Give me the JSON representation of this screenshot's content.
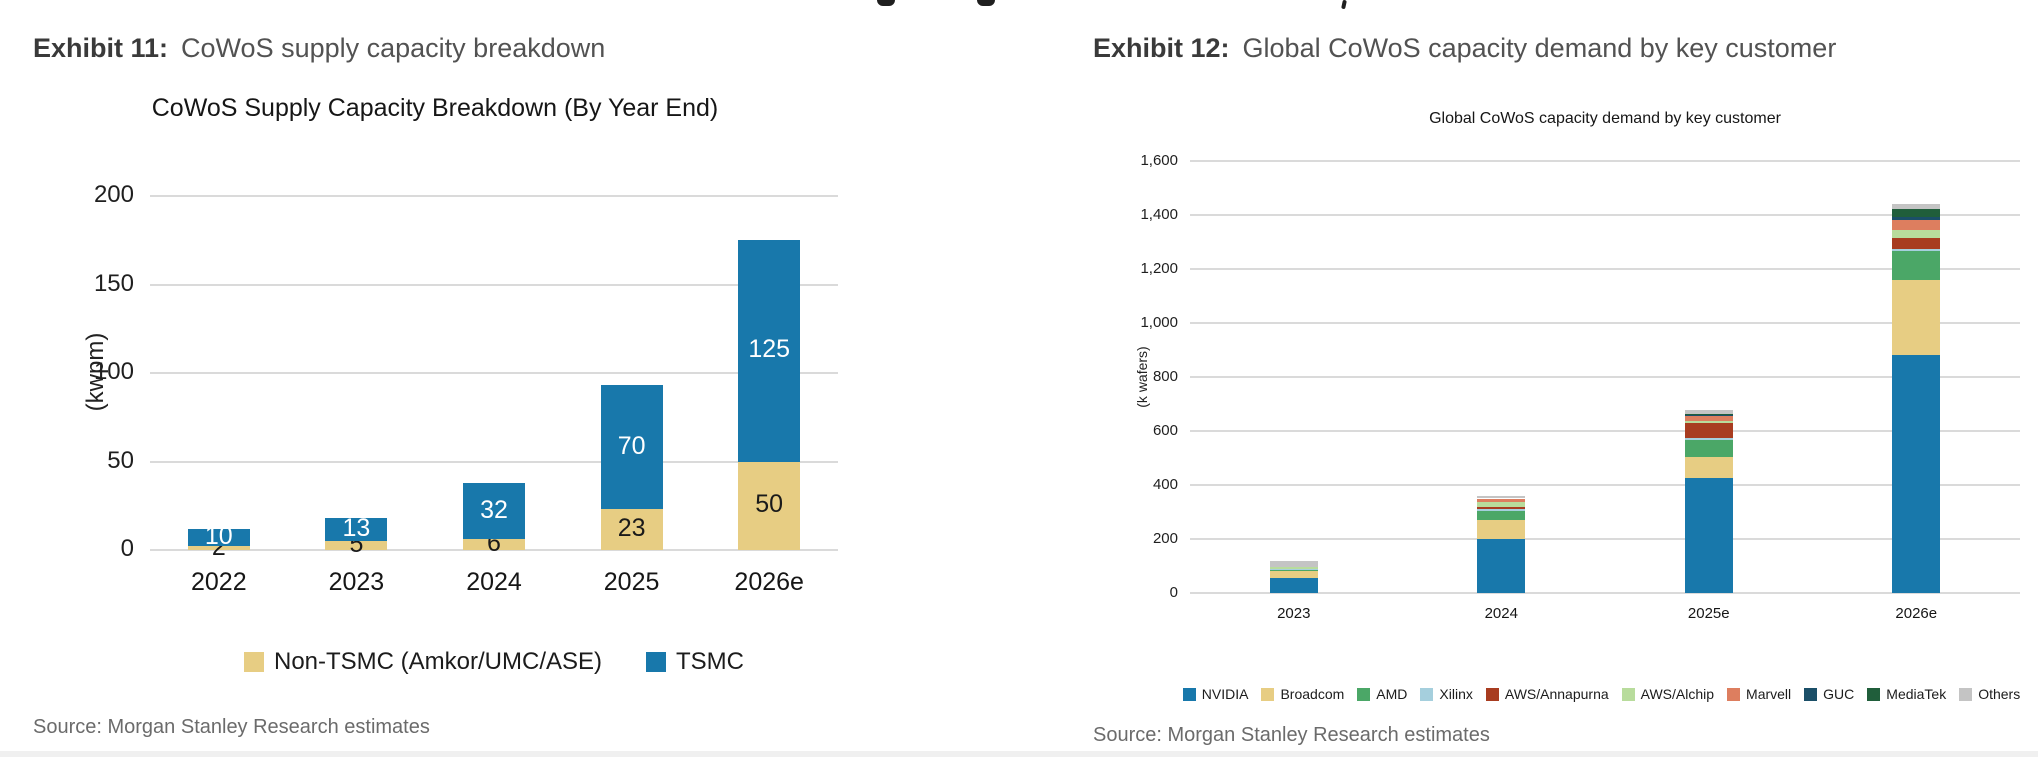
{
  "exhibits": {
    "left": {
      "label": "Exhibit 11:",
      "title": "CoWoS supply capacity breakdown",
      "source": "Source: Morgan Stanley Research estimates"
    },
    "right": {
      "label": "Exhibit 12:",
      "title": "Global CoWoS capacity demand by key customer",
      "source": "Source: Morgan Stanley Research estimates"
    }
  },
  "chart_data": [
    {
      "id": "cowos-supply-capacity",
      "type": "bar",
      "stacked": true,
      "title": "CoWoS Supply Capacity Breakdown (By Year End)",
      "xlabel": "",
      "ylabel": "(kwpm)",
      "ylim": [
        0,
        200
      ],
      "ytick_labels": [
        "0",
        "50",
        "100",
        "150",
        "200"
      ],
      "grid": true,
      "legend_position": "bottom",
      "categories": [
        "2022",
        "2023",
        "2024",
        "2025",
        "2026e"
      ],
      "series": [
        {
          "name": "Non-TSMC (Amkor/UMC/ASE)",
          "color": "#e7cd83",
          "label_color": "#1a1a1a",
          "show_labels": true,
          "values": [
            2,
            5,
            6,
            23,
            50
          ]
        },
        {
          "name": "TSMC",
          "color": "#1878ab",
          "label_color": "#ffffff",
          "show_labels": true,
          "values": [
            10,
            13,
            32,
            70,
            125
          ]
        }
      ]
    },
    {
      "id": "cowos-demand-by-customer",
      "type": "bar",
      "stacked": true,
      "title": "Global CoWoS capacity demand by key customer",
      "xlabel": "",
      "ylabel": "(k wafers)",
      "ylim": [
        0,
        1600
      ],
      "ytick_labels": [
        "0",
        "200",
        "400",
        "600",
        "800",
        "1,000",
        "1,200",
        "1,400",
        "1,600"
      ],
      "grid": true,
      "legend_position": "bottom",
      "categories": [
        "2023",
        "2024",
        "2025e",
        "2026e"
      ],
      "series": [
        {
          "name": "NVIDIA",
          "color": "#1878ab",
          "show_labels": false,
          "values": [
            55,
            200,
            425,
            880
          ]
        },
        {
          "name": "Broadcom",
          "color": "#e7cd83",
          "show_labels": false,
          "values": [
            25,
            70,
            80,
            280
          ]
        },
        {
          "name": "AMD",
          "color": "#4ba767",
          "show_labels": false,
          "values": [
            7,
            35,
            60,
            105
          ]
        },
        {
          "name": "Xilinx",
          "color": "#a5cfdd",
          "show_labels": false,
          "values": [
            2,
            5,
            8,
            10
          ]
        },
        {
          "name": "AWS/Annapurna",
          "color": "#a83c20",
          "show_labels": false,
          "values": [
            0,
            8,
            55,
            40
          ]
        },
        {
          "name": "AWS/Alchip",
          "color": "#b8dc9c",
          "show_labels": false,
          "values": [
            7,
            20,
            8,
            30
          ]
        },
        {
          "name": "Marvell",
          "color": "#dd7e5f",
          "show_labels": false,
          "values": [
            0,
            12,
            18,
            35
          ]
        },
        {
          "name": "GUC",
          "color": "#1b4f68",
          "show_labels": false,
          "values": [
            0,
            0,
            4,
            12
          ]
        },
        {
          "name": "MediaTek",
          "color": "#205e3b",
          "show_labels": false,
          "values": [
            0,
            0,
            4,
            30
          ]
        },
        {
          "name": "Others",
          "color": "#c4c4c4",
          "show_labels": false,
          "values": [
            22,
            10,
            15,
            20
          ]
        }
      ]
    }
  ]
}
